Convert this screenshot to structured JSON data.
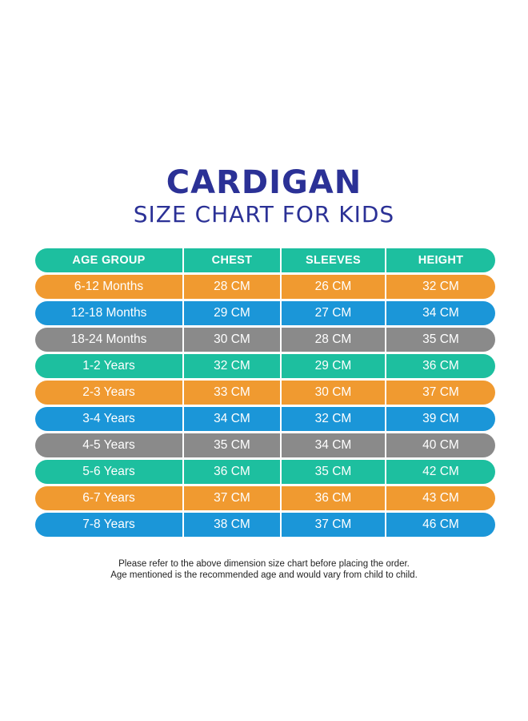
{
  "title": "CARDIGAN",
  "subtitle": "SIZE CHART FOR KIDS",
  "colors": {
    "title": "#2b3196",
    "teal": "#1dbf9f",
    "orange": "#f09a30",
    "blue": "#1b96d8",
    "grey": "#8a8a8a"
  },
  "table": {
    "headers": [
      "AGE GROUP",
      "CHEST",
      "SLEEVES",
      "HEIGHT"
    ],
    "rows": [
      [
        "6-12 Months",
        "28 CM",
        "26 CM",
        "32 CM"
      ],
      [
        "12-18 Months",
        "29 CM",
        "27 CM",
        "34 CM"
      ],
      [
        "18-24 Months",
        "30 CM",
        "28 CM",
        "35 CM"
      ],
      [
        "1-2 Years",
        "32 CM",
        "29 CM",
        "36 CM"
      ],
      [
        "2-3 Years",
        "33 CM",
        "30 CM",
        "37 CM"
      ],
      [
        "3-4 Years",
        "34 CM",
        "32 CM",
        "39 CM"
      ],
      [
        "4-5 Years",
        "35 CM",
        "34 CM",
        "40 CM"
      ],
      [
        "5-6 Years",
        "36 CM",
        "35 CM",
        "42 CM"
      ],
      [
        "6-7 Years",
        "37 CM",
        "36 CM",
        "43 CM"
      ],
      [
        "7-8 Years",
        "38 CM",
        "37 CM",
        "46 CM"
      ]
    ]
  },
  "notes": {
    "line1": "Please refer to the above dimension size chart before placing the order.",
    "line2": "Age mentioned is the recommended age and would vary from child to child."
  }
}
